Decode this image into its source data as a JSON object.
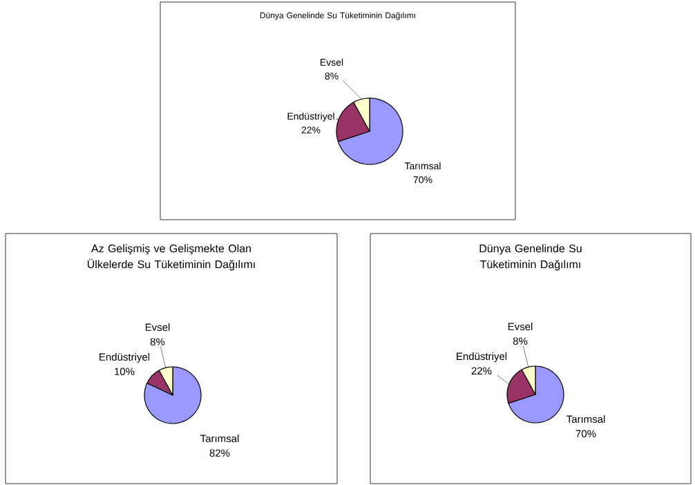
{
  "chart_data": [
    {
      "type": "pie",
      "title": "Dünya Genelinde Su Tüketiminin Dağılımı",
      "categories": [
        "Tarımsal",
        "Endüstriyel",
        "Evsel"
      ],
      "values": [
        70,
        22,
        8
      ],
      "value_labels": [
        "70%",
        "22%",
        "8%"
      ],
      "colors": [
        "#9999ff",
        "#993366",
        "#ffffcc"
      ]
    },
    {
      "type": "pie",
      "title": "Az Gelişmiş ve Gelişmekte Olan Ülkelerde Su Tüketiminin Dağılımı",
      "categories": [
        "Tarımsal",
        "Endüstriyel",
        "Evsel"
      ],
      "values": [
        82,
        10,
        8
      ],
      "value_labels": [
        "82%",
        "10%",
        "8%"
      ],
      "colors": [
        "#9999ff",
        "#993366",
        "#ffffcc"
      ]
    },
    {
      "type": "pie",
      "title": "Dünya Genelinde Su Tüketiminin Dağılımı",
      "categories": [
        "Tarımsal",
        "Endüstriyel",
        "Evsel"
      ],
      "values": [
        70,
        22,
        8
      ],
      "value_labels": [
        "70%",
        "22%",
        "8%"
      ],
      "colors": [
        "#9999ff",
        "#993366",
        "#ffffcc"
      ]
    }
  ]
}
